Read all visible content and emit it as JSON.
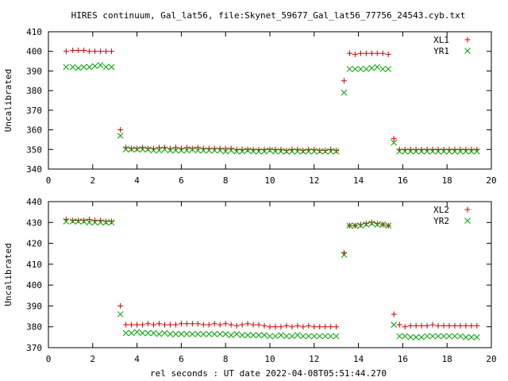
{
  "title": "HIRES continuum, Gal_lat56, file:Skynet_59677_Gal_lat56_77756_24543.cyb.txt",
  "xlabel": "rel seconds : UT date 2022-04-08T05:51:44.270",
  "colors": {
    "red": "#cc0000",
    "green": "#00a000",
    "axis": "#000000"
  },
  "chart_data": [
    {
      "type": "scatter",
      "ylabel": "Uncalibrated",
      "xlim": [
        0,
        20
      ],
      "ylim": [
        340,
        410
      ],
      "xticks": [
        0,
        2,
        4,
        6,
        8,
        10,
        12,
        14,
        16,
        18,
        20
      ],
      "yticks": [
        340,
        350,
        360,
        370,
        380,
        390,
        400,
        410
      ],
      "legend_position": "top-right",
      "series": [
        {
          "name": "XL1",
          "marker": "plus",
          "color": "#cc0000",
          "x": [
            0.8,
            1.1,
            1.35,
            1.6,
            1.85,
            2.1,
            2.35,
            2.6,
            2.85,
            3.25,
            3.5,
            3.75,
            4.0,
            4.25,
            4.5,
            4.75,
            5.0,
            5.25,
            5.5,
            5.75,
            6.0,
            6.25,
            6.5,
            6.75,
            7.0,
            7.25,
            7.5,
            7.75,
            8.0,
            8.25,
            8.5,
            8.75,
            9.0,
            9.25,
            9.5,
            9.75,
            10.0,
            10.25,
            10.5,
            10.75,
            11.0,
            11.25,
            11.5,
            11.75,
            12.0,
            12.25,
            12.5,
            12.75,
            13.0,
            13.35,
            13.6,
            13.85,
            14.1,
            14.35,
            14.6,
            14.85,
            15.1,
            15.35,
            15.6,
            15.85,
            16.1,
            16.35,
            16.6,
            16.85,
            17.1,
            17.35,
            17.6,
            17.85,
            18.1,
            18.35,
            18.6,
            18.85,
            19.1,
            19.35
          ],
          "y": [
            400,
            400.5,
            400.5,
            400.5,
            400,
            400,
            400,
            400,
            400,
            360,
            351,
            350.5,
            350.5,
            351,
            350.5,
            350.5,
            351,
            351,
            350.5,
            351,
            350.5,
            351,
            350.5,
            351,
            350.5,
            350.5,
            350.5,
            350.5,
            350.5,
            350.5,
            350,
            350,
            350,
            350,
            350,
            350,
            350,
            350,
            350,
            349.5,
            350,
            350,
            349.5,
            350,
            350,
            349.5,
            349.5,
            350,
            349.5,
            385,
            399,
            398.5,
            399,
            399,
            399,
            399,
            399,
            398.5,
            355.5,
            350,
            350,
            350,
            350,
            350,
            350,
            350,
            350,
            350,
            350,
            350,
            350,
            350,
            350,
            350
          ]
        },
        {
          "name": "YR1",
          "marker": "cross",
          "color": "#00a000",
          "x": [
            0.8,
            1.1,
            1.35,
            1.6,
            1.85,
            2.1,
            2.35,
            2.6,
            2.85,
            3.25,
            3.5,
            3.75,
            4.0,
            4.25,
            4.5,
            4.75,
            5.0,
            5.25,
            5.5,
            5.75,
            6.0,
            6.25,
            6.5,
            6.75,
            7.0,
            7.25,
            7.5,
            7.75,
            8.0,
            8.25,
            8.5,
            8.75,
            9.0,
            9.25,
            9.5,
            9.75,
            10.0,
            10.25,
            10.5,
            10.75,
            11.0,
            11.25,
            11.5,
            11.75,
            12.0,
            12.25,
            12.5,
            12.75,
            13.0,
            13.35,
            13.6,
            13.85,
            14.1,
            14.35,
            14.6,
            14.85,
            15.1,
            15.35,
            15.6,
            15.85,
            16.1,
            16.35,
            16.6,
            16.85,
            17.1,
            17.35,
            17.6,
            17.85,
            18.1,
            18.35,
            18.6,
            18.85,
            19.1,
            19.35
          ],
          "y": [
            392,
            392,
            391.5,
            392,
            392,
            392.5,
            393,
            392,
            392,
            357,
            350,
            350,
            350,
            350,
            350,
            349.5,
            349.5,
            350,
            349.5,
            349.5,
            349.5,
            349.5,
            350,
            349.5,
            349.5,
            349.5,
            349.5,
            349.5,
            349,
            349.5,
            349,
            349,
            349.5,
            349,
            349,
            349,
            349.5,
            349,
            349,
            349,
            349,
            349,
            349,
            349,
            349,
            349,
            349,
            349,
            349,
            379,
            391,
            391,
            391,
            391,
            391.5,
            392,
            391,
            391,
            353.5,
            349,
            349,
            349,
            349,
            349,
            349,
            349,
            349,
            349,
            349,
            349,
            349,
            349,
            349,
            349
          ]
        }
      ]
    },
    {
      "type": "scatter",
      "ylabel": "Uncalibrated",
      "xlim": [
        0,
        20
      ],
      "ylim": [
        370,
        440
      ],
      "xticks": [
        0,
        2,
        4,
        6,
        8,
        10,
        12,
        14,
        16,
        18,
        20
      ],
      "yticks": [
        370,
        380,
        390,
        400,
        410,
        420,
        430,
        440
      ],
      "legend_position": "top-right",
      "series": [
        {
          "name": "XL2",
          "marker": "plus",
          "color": "#cc0000",
          "x": [
            0.8,
            1.1,
            1.35,
            1.6,
            1.85,
            2.1,
            2.35,
            2.6,
            2.85,
            3.25,
            3.5,
            3.75,
            4.0,
            4.25,
            4.5,
            4.75,
            5.0,
            5.25,
            5.5,
            5.75,
            6.0,
            6.25,
            6.5,
            6.75,
            7.0,
            7.25,
            7.5,
            7.75,
            8.0,
            8.25,
            8.5,
            8.75,
            9.0,
            9.25,
            9.5,
            9.75,
            10.0,
            10.25,
            10.5,
            10.75,
            11.0,
            11.25,
            11.5,
            11.75,
            12.0,
            12.25,
            12.5,
            12.75,
            13.0,
            13.35,
            13.6,
            13.85,
            14.1,
            14.35,
            14.6,
            14.85,
            15.1,
            15.35,
            15.6,
            15.85,
            16.1,
            16.35,
            16.6,
            16.85,
            17.1,
            17.35,
            17.6,
            17.85,
            18.1,
            18.35,
            18.6,
            18.85,
            19.1,
            19.35
          ],
          "y": [
            431.5,
            431,
            431,
            431,
            431.5,
            431,
            431,
            430.5,
            430.5,
            390,
            381,
            381,
            381,
            381,
            381.5,
            381,
            381.5,
            381,
            381,
            381,
            381.5,
            381.5,
            381.5,
            381.5,
            381,
            381,
            381.5,
            381,
            381.5,
            381,
            380.5,
            381,
            381.5,
            381,
            381,
            380.5,
            380,
            380,
            380,
            380.5,
            380,
            380.5,
            380,
            380.5,
            380,
            380,
            380,
            380,
            380,
            415.5,
            428.5,
            428.5,
            429,
            429.5,
            430,
            429.5,
            429,
            428.5,
            386,
            381,
            380,
            380.5,
            380.5,
            380.5,
            380.5,
            381,
            380.5,
            380.5,
            380.5,
            380.5,
            380.5,
            380.5,
            380.5,
            380.5
          ]
        },
        {
          "name": "YR2",
          "marker": "cross",
          "color": "#00a000",
          "x": [
            0.8,
            1.1,
            1.35,
            1.6,
            1.85,
            2.1,
            2.35,
            2.6,
            2.85,
            3.25,
            3.5,
            3.75,
            4.0,
            4.25,
            4.5,
            4.75,
            5.0,
            5.25,
            5.5,
            5.75,
            6.0,
            6.25,
            6.5,
            6.75,
            7.0,
            7.25,
            7.5,
            7.75,
            8.0,
            8.25,
            8.5,
            8.75,
            9.0,
            9.25,
            9.5,
            9.75,
            10.0,
            10.25,
            10.5,
            10.75,
            11.0,
            11.25,
            11.5,
            11.75,
            12.0,
            12.25,
            12.5,
            12.75,
            13.0,
            13.35,
            13.6,
            13.85,
            14.1,
            14.35,
            14.6,
            14.85,
            15.1,
            15.35,
            15.6,
            15.85,
            16.1,
            16.35,
            16.6,
            16.85,
            17.1,
            17.35,
            17.6,
            17.85,
            18.1,
            18.35,
            18.6,
            18.85,
            19.1,
            19.35
          ],
          "y": [
            430.5,
            430.5,
            430.5,
            430.5,
            430,
            430,
            430,
            430,
            430,
            386,
            377,
            377,
            377.5,
            377,
            377,
            377,
            376.5,
            377,
            376.5,
            376.5,
            376.5,
            376.5,
            376.5,
            376.5,
            376.5,
            376.5,
            376.5,
            376.5,
            376.5,
            376,
            376.5,
            376,
            376,
            376,
            376,
            376,
            375.5,
            375.5,
            376,
            375.5,
            375.5,
            376,
            375.5,
            375.5,
            375.5,
            375.5,
            375.5,
            375.5,
            375.5,
            414.5,
            428.5,
            428.5,
            428.5,
            429,
            429.5,
            429,
            429,
            428.5,
            381,
            375.5,
            375.5,
            375,
            375,
            375,
            375.5,
            375.5,
            375.5,
            375.5,
            375.5,
            375.5,
            375.5,
            375,
            375,
            375
          ]
        }
      ]
    }
  ]
}
